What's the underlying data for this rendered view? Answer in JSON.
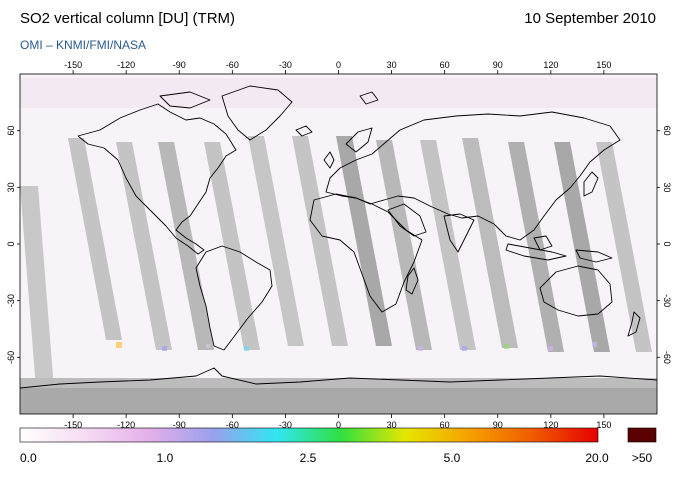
{
  "header": {
    "title": "SO2 vertical column [DU] (TRM)",
    "date": "10 September 2010",
    "credit": "OMI  –  KNMI/FMI/NASA"
  },
  "map": {
    "projection": "equirectangular",
    "lon_range": [
      -180,
      180
    ],
    "lat_range": [
      -90,
      90
    ],
    "lon_ticks": [
      -150,
      -120,
      -90,
      -60,
      -30,
      0,
      30,
      60,
      90,
      120,
      150
    ],
    "lat_ticks": [
      60,
      30,
      0,
      -30,
      -60
    ],
    "coastline_color": "#000000",
    "swath_color": "#bdbdbd",
    "background_color": "#f7f3f8"
  },
  "colorbar": {
    "labels": [
      "0.0",
      "1.0",
      "2.5",
      "5.0",
      "20.0"
    ],
    "overflow_label": ">50",
    "overflow_color": "#5a0000",
    "gradient_stops": [
      "#ffffff",
      "#f6dcf3",
      "#e4b0ea",
      "#9aa0ec",
      "#30e6f2",
      "#30e040",
      "#e6e600",
      "#f6a000",
      "#f05a00",
      "#e60000"
    ]
  }
}
